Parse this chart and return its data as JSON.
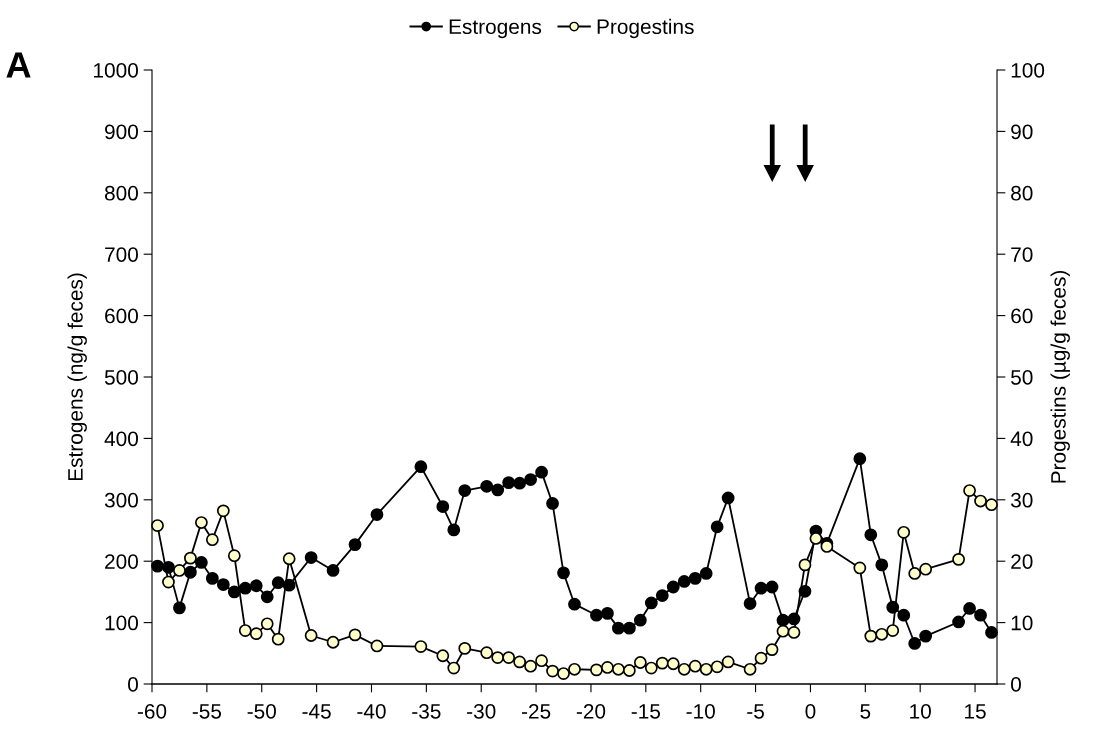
{
  "chart_data": {
    "type": "line",
    "xlabel": null,
    "ylabel": "Estrogens (ng/g feces)",
    "y2label": "Progestins (µg/g feces)",
    "x": [
      -59.5,
      -58.5,
      -57.5,
      -56.5,
      -55.5,
      -54.5,
      -53.5,
      -52.5,
      -51.5,
      -50.5,
      -49.5,
      -48.5,
      -47.5,
      -45.5,
      -43.5,
      -41.5,
      -39.5,
      -35.5,
      -33.5,
      -32.5,
      -31.5,
      -29.5,
      -28.5,
      -27.5,
      -26.5,
      -25.5,
      -24.5,
      -23.5,
      -22.5,
      -21.5,
      -19.5,
      -18.5,
      -17.5,
      -16.5,
      -15.5,
      -14.5,
      -13.5,
      -12.5,
      -11.5,
      -10.5,
      -9.5,
      -8.5,
      -7.5,
      -5.5,
      -4.5,
      -3.5,
      -2.5,
      -1.5,
      -0.5,
      0.5,
      1.5,
      4.5,
      5.5,
      6.5,
      7.5,
      8.5,
      9.5,
      10.5,
      13.5,
      14.5,
      15.5,
      16.5
    ],
    "series": [
      {
        "name": "Estrogens",
        "color": "#000000",
        "values": [
          192,
          190,
          124,
          182,
          198,
          172,
          162,
          150,
          156,
          160,
          142,
          165,
          161,
          206,
          185,
          227,
          276,
          354,
          289,
          251,
          315,
          322,
          316,
          328,
          327,
          333,
          345,
          294,
          181,
          130,
          112,
          115,
          91,
          91,
          104,
          132,
          144,
          158,
          167,
          172,
          180,
          256,
          303,
          131,
          156,
          158,
          104,
          106,
          151,
          249,
          229,
          367,
          243,
          194,
          125,
          112,
          66,
          78,
          101,
          123,
          112,
          84
        ]
      },
      {
        "name": "Progestins",
        "color": "#ffffcc",
        "axis": "y2",
        "values": [
          25.8,
          16.6,
          18.5,
          20.5,
          26.3,
          23.5,
          28.2,
          20.9,
          8.7,
          8.2,
          9.8,
          7.3,
          20.4,
          7.9,
          6.8,
          8.0,
          6.2,
          6.1,
          4.6,
          2.6,
          5.8,
          5.1,
          4.3,
          4.3,
          3.6,
          2.9,
          3.8,
          2.1,
          1.7,
          2.4,
          2.3,
          2.7,
          2.4,
          2.2,
          3.5,
          2.6,
          3.4,
          3.3,
          2.4,
          2.9,
          2.4,
          2.8,
          3.6,
          2.4,
          4.2,
          5.6,
          8.6,
          8.4,
          19.4,
          23.7,
          22.4,
          18.9,
          7.8,
          8.1,
          8.7,
          24.7,
          18.0,
          18.7,
          20.3,
          31.5,
          29.8,
          29.2
        ]
      }
    ],
    "xlim": [
      -60,
      17
    ],
    "xticks": [
      -60,
      -55,
      -50,
      -45,
      -40,
      -35,
      -30,
      -25,
      -20,
      -15,
      -10,
      -5,
      0,
      5,
      10,
      15
    ],
    "ylim": [
      0,
      1000
    ],
    "yticks": [
      0,
      100,
      200,
      300,
      400,
      500,
      600,
      700,
      800,
      900,
      1000
    ],
    "y2lim": [
      0,
      100
    ],
    "y2ticks": [
      0,
      10,
      20,
      30,
      40,
      50,
      60,
      70,
      80,
      90,
      100
    ],
    "marker": "circle",
    "line_style": "solid",
    "grid": false,
    "legend": "top",
    "annotations": [
      "A"
    ]
  }
}
